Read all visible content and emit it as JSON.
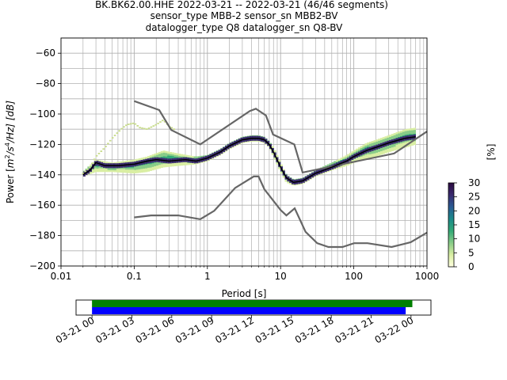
{
  "chart_data": [
    {
      "type": "heatmap",
      "title_lines": [
        "BK.BK62.00.HHE   2022-03-21 -- 2022-03-21  (46/46 segments)",
        "sensor_type MBB-2 sensor_sn MBB2-BV",
        "datalogger_type Q8 datalogger_sn Q8-BV"
      ],
      "xlabel": "Period [s]",
      "ylabel_prefix": "Power [",
      "ylabel_unit_base1": "m",
      "ylabel_unit_sup1": "2",
      "ylabel_unit_base2": "/s",
      "ylabel_unit_sup2": "4",
      "ylabel_unit_rest": "/Hz] [dB]",
      "x_scale": "log",
      "xlim": [
        0.01,
        1000
      ],
      "ylim": [
        -200,
        -50
      ],
      "x_ticks": [
        {
          "value": 0.01,
          "label": "0.01"
        },
        {
          "value": 0.1,
          "label": "0.1"
        },
        {
          "value": 1,
          "label": "1"
        },
        {
          "value": 10,
          "label": "10"
        },
        {
          "value": 100,
          "label": "100"
        },
        {
          "value": 1000,
          "label": "1000"
        }
      ],
      "y_ticks": [
        {
          "value": -200,
          "label": "−200"
        },
        {
          "value": -180,
          "label": "−180"
        },
        {
          "value": -160,
          "label": "−160"
        },
        {
          "value": -140,
          "label": "−140"
        },
        {
          "value": -120,
          "label": "−120"
        },
        {
          "value": -100,
          "label": "−100"
        },
        {
          "value": -80,
          "label": "−80"
        },
        {
          "value": -60,
          "label": "−60"
        }
      ],
      "grid": true,
      "colorbar": {
        "label": "[%]",
        "range": [
          0,
          30
        ],
        "ticks": [
          {
            "value": 0,
            "label": "0"
          },
          {
            "value": 5,
            "label": "5"
          },
          {
            "value": 10,
            "label": "10"
          },
          {
            "value": 15,
            "label": "15"
          },
          {
            "value": 20,
            "label": "20"
          },
          {
            "value": 25,
            "label": "25"
          },
          {
            "value": 30,
            "label": "30"
          }
        ],
        "colors": [
          "#ffffe0",
          "#d9eea3",
          "#88cc88",
          "#33aa77",
          "#1b8a8a",
          "#2a5a93",
          "#3a2a6e",
          "#2b0a40"
        ]
      },
      "colors": {
        "noise_model": "#666666",
        "mode": "#000000",
        "grid": "#b0b0b0",
        "main_band": "#33aa77",
        "outlier": "#c8dc8c"
      },
      "series": [
        {
          "role": "high-noise-model",
          "x": [
            0.1,
            0.22,
            0.32,
            0.8,
            3.8,
            4.6,
            6.3,
            7.9,
            15.4,
            20,
            354.8,
            1000
          ],
          "y": [
            -91.5,
            -97.4,
            -110.5,
            -120,
            -98,
            -96.5,
            -101,
            -113.5,
            -120,
            -138.5,
            -126,
            -111.5
          ]
        },
        {
          "role": "low-noise-model",
          "x": [
            0.1,
            0.17,
            0.4,
            0.8,
            1.24,
            2.4,
            4.3,
            5,
            6,
            10,
            12,
            15.6,
            21.9,
            31.6,
            45,
            70,
            101,
            154,
            328,
            600,
            1000
          ],
          "y": [
            -168,
            -166.7,
            -166.7,
            -169.2,
            -163.7,
            -148.6,
            -141.1,
            -141.1,
            -149.5,
            -163.2,
            -166.7,
            -162.1,
            -177.5,
            -185,
            -187.5,
            -187.5,
            -185,
            -185,
            -187.5,
            -184.4,
            -178
          ]
        },
        {
          "role": "mode",
          "x": [
            0.02,
            0.025,
            0.03,
            0.04,
            0.06,
            0.1,
            0.15,
            0.2,
            0.3,
            0.5,
            0.7,
            1,
            1.5,
            2,
            3,
            4,
            5,
            6,
            7,
            8,
            10,
            12,
            15,
            20,
            30,
            50,
            80,
            100,
            150,
            200,
            300,
            500,
            700
          ],
          "y": [
            -140,
            -137,
            -132,
            -134,
            -134,
            -133,
            -131,
            -130,
            -131,
            -130,
            -131,
            -129,
            -125,
            -121,
            -117,
            -116,
            -116,
            -117,
            -120,
            -125,
            -135,
            -142,
            -145,
            -144,
            -139,
            -135,
            -131,
            -128,
            -124,
            -122,
            -119,
            -116,
            -115
          ]
        },
        {
          "role": "band-upper",
          "x": [
            0.02,
            0.03,
            0.05,
            0.1,
            0.15,
            0.25,
            0.4,
            0.7,
            1,
            1.5,
            2,
            3,
            4,
            5,
            6,
            7,
            8,
            10,
            12,
            15,
            20,
            30,
            50,
            80,
            100,
            150,
            200,
            300,
            500,
            700
          ],
          "y": [
            -138,
            -130,
            -132,
            -130,
            -128,
            -124,
            -126,
            -128,
            -127,
            -123,
            -119,
            -115,
            -114,
            -114,
            -115,
            -118,
            -122,
            -132,
            -140,
            -143,
            -142,
            -137,
            -132,
            -127,
            -124,
            -119,
            -117,
            -114,
            -110,
            -109
          ]
        },
        {
          "role": "band-lower",
          "x": [
            0.02,
            0.03,
            0.05,
            0.1,
            0.15,
            0.25,
            0.4,
            0.7,
            1,
            1.5,
            2,
            3,
            4,
            5,
            6,
            7,
            8,
            10,
            12,
            15,
            20,
            30,
            50,
            80,
            100,
            150,
            200,
            300,
            500,
            700
          ],
          "y": [
            -141,
            -138,
            -138,
            -139,
            -138,
            -135,
            -134,
            -133,
            -131,
            -127,
            -123,
            -119,
            -118,
            -118,
            -119,
            -122,
            -128,
            -138,
            -145,
            -147,
            -146,
            -141,
            -137,
            -134,
            -132,
            -129,
            -128,
            -125,
            -122,
            -120
          ]
        },
        {
          "role": "outlier-trace",
          "x": [
            0.02,
            0.025,
            0.03,
            0.04,
            0.05,
            0.06,
            0.07,
            0.08,
            0.1,
            0.12,
            0.15,
            0.2,
            0.25,
            0.3,
            0.35
          ],
          "y": [
            -139,
            -135,
            -128,
            -122,
            -116,
            -112,
            -109,
            -107,
            -106,
            -109,
            -110,
            -107,
            -104,
            -108,
            -110
          ]
        }
      ]
    },
    {
      "type": "timeline",
      "x_ticks": [
        {
          "value": 0,
          "label": "03-21 00"
        },
        {
          "value": 3,
          "label": "03-21 03"
        },
        {
          "value": 6,
          "label": "03-21 06"
        },
        {
          "value": 9,
          "label": "03-21 09"
        },
        {
          "value": 12,
          "label": "03-21 12"
        },
        {
          "value": 15,
          "label": "03-21 15"
        },
        {
          "value": 18,
          "label": "03-21 18"
        },
        {
          "value": 21,
          "label": "03-21 21"
        },
        {
          "value": 24,
          "label": "03-22 00"
        }
      ],
      "xlim": [
        -1.2,
        25.5
      ],
      "bars": [
        {
          "role": "data-coverage",
          "start": 0,
          "end": 24.1,
          "color": "#008000"
        },
        {
          "role": "psd-coverage",
          "start": 0,
          "end": 23.6,
          "color": "#0000ff"
        }
      ]
    }
  ]
}
